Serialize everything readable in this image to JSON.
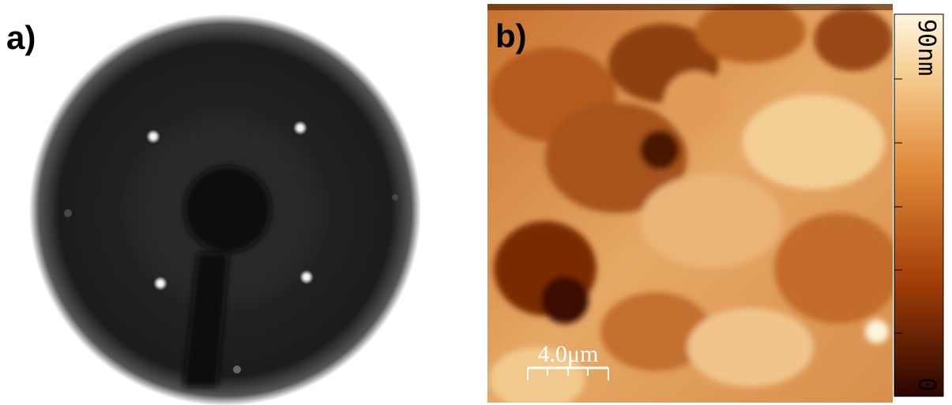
{
  "panels": [
    {
      "label": "a)"
    },
    {
      "label": "b)",
      "scale_bar": "4.0μm",
      "colorbar": {
        "max_label": "90nm",
        "min_label": "0"
      }
    }
  ]
}
